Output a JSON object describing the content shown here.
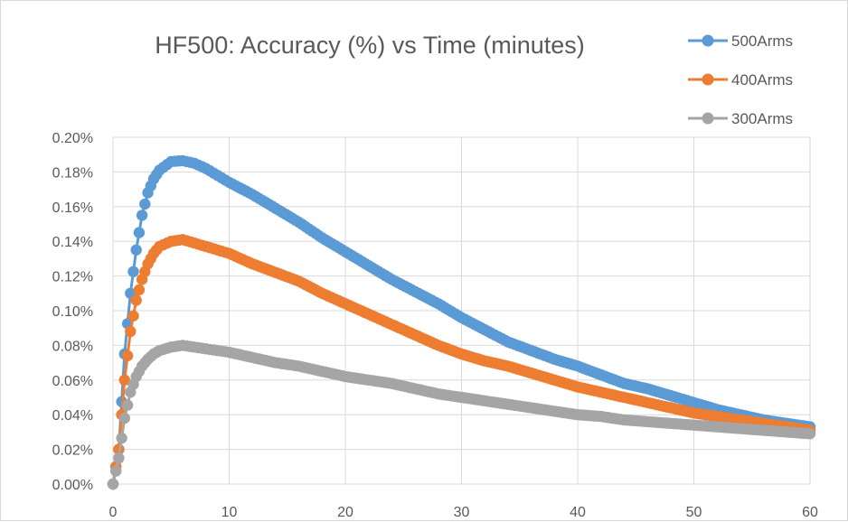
{
  "chart_data": {
    "type": "line",
    "title": "HF500: Accuracy (%) vs Time (minutes)",
    "xlabel": "",
    "ylabel": "",
    "xlim": [
      0,
      60
    ],
    "ylim": [
      0,
      0.2
    ],
    "x_ticks": [
      "0",
      "10",
      "20",
      "30",
      "40",
      "50",
      "60"
    ],
    "y_ticks": [
      "0.00%",
      "0.02%",
      "0.04%",
      "0.06%",
      "0.08%",
      "0.10%",
      "0.12%",
      "0.14%",
      "0.16%",
      "0.18%",
      "0.20%"
    ],
    "grid": true,
    "legend_position": "top-right",
    "marker": "circle",
    "series": [
      {
        "name": "500Arms",
        "color": "#5b9bd5",
        "points": [
          [
            0,
            0.0
          ],
          [
            0.5,
            0.02
          ],
          [
            1,
            0.075
          ],
          [
            1.5,
            0.11
          ],
          [
            2,
            0.135
          ],
          [
            2.5,
            0.155
          ],
          [
            3,
            0.168
          ],
          [
            3.5,
            0.176
          ],
          [
            4,
            0.181
          ],
          [
            5,
            0.186
          ],
          [
            6,
            0.1865
          ],
          [
            7,
            0.185
          ],
          [
            8,
            0.182
          ],
          [
            9,
            0.178
          ],
          [
            10,
            0.174
          ],
          [
            12,
            0.167
          ],
          [
            14,
            0.159
          ],
          [
            16,
            0.151
          ],
          [
            18,
            0.142
          ],
          [
            20,
            0.134
          ],
          [
            22,
            0.126
          ],
          [
            24,
            0.118
          ],
          [
            26,
            0.111
          ],
          [
            28,
            0.104
          ],
          [
            30,
            0.096
          ],
          [
            32,
            0.089
          ],
          [
            34,
            0.082
          ],
          [
            36,
            0.077
          ],
          [
            38,
            0.072
          ],
          [
            40,
            0.068
          ],
          [
            42,
            0.063
          ],
          [
            44,
            0.058
          ],
          [
            46,
            0.055
          ],
          [
            48,
            0.051
          ],
          [
            50,
            0.047
          ],
          [
            52,
            0.043
          ],
          [
            54,
            0.04
          ],
          [
            56,
            0.037
          ],
          [
            58,
            0.035
          ],
          [
            60,
            0.033
          ]
        ]
      },
      {
        "name": "400Arms",
        "color": "#ed7d31",
        "points": [
          [
            0,
            0.0
          ],
          [
            0.5,
            0.02
          ],
          [
            1,
            0.06
          ],
          [
            1.5,
            0.088
          ],
          [
            2,
            0.106
          ],
          [
            2.5,
            0.118
          ],
          [
            3,
            0.127
          ],
          [
            3.5,
            0.133
          ],
          [
            4,
            0.137
          ],
          [
            5,
            0.14
          ],
          [
            6,
            0.141
          ],
          [
            7,
            0.139
          ],
          [
            8,
            0.137
          ],
          [
            9,
            0.135
          ],
          [
            10,
            0.133
          ],
          [
            12,
            0.127
          ],
          [
            14,
            0.122
          ],
          [
            16,
            0.117
          ],
          [
            18,
            0.11
          ],
          [
            20,
            0.104
          ],
          [
            22,
            0.098
          ],
          [
            24,
            0.092
          ],
          [
            26,
            0.086
          ],
          [
            28,
            0.08
          ],
          [
            30,
            0.075
          ],
          [
            32,
            0.071
          ],
          [
            34,
            0.068
          ],
          [
            36,
            0.064
          ],
          [
            38,
            0.06
          ],
          [
            40,
            0.056
          ],
          [
            42,
            0.053
          ],
          [
            44,
            0.05
          ],
          [
            46,
            0.047
          ],
          [
            48,
            0.044
          ],
          [
            50,
            0.041
          ],
          [
            52,
            0.039
          ],
          [
            54,
            0.037
          ],
          [
            56,
            0.035
          ],
          [
            58,
            0.033
          ],
          [
            60,
            0.031
          ]
        ]
      },
      {
        "name": "300Arms",
        "color": "#a5a5a5",
        "points": [
          [
            0,
            0.0
          ],
          [
            0.5,
            0.015
          ],
          [
            1,
            0.038
          ],
          [
            1.5,
            0.053
          ],
          [
            2,
            0.062
          ],
          [
            2.5,
            0.068
          ],
          [
            3,
            0.072
          ],
          [
            3.5,
            0.075
          ],
          [
            4,
            0.077
          ],
          [
            5,
            0.079
          ],
          [
            6,
            0.08
          ],
          [
            7,
            0.079
          ],
          [
            8,
            0.078
          ],
          [
            9,
            0.077
          ],
          [
            10,
            0.076
          ],
          [
            12,
            0.073
          ],
          [
            14,
            0.07
          ],
          [
            16,
            0.068
          ],
          [
            18,
            0.065
          ],
          [
            20,
            0.062
          ],
          [
            22,
            0.06
          ],
          [
            24,
            0.058
          ],
          [
            26,
            0.055
          ],
          [
            28,
            0.052
          ],
          [
            30,
            0.05
          ],
          [
            32,
            0.048
          ],
          [
            34,
            0.046
          ],
          [
            36,
            0.044
          ],
          [
            38,
            0.042
          ],
          [
            40,
            0.04
          ],
          [
            42,
            0.039
          ],
          [
            44,
            0.037
          ],
          [
            46,
            0.036
          ],
          [
            48,
            0.035
          ],
          [
            50,
            0.034
          ],
          [
            52,
            0.033
          ],
          [
            54,
            0.032
          ],
          [
            56,
            0.031
          ],
          [
            58,
            0.03
          ],
          [
            60,
            0.029
          ]
        ]
      }
    ]
  }
}
